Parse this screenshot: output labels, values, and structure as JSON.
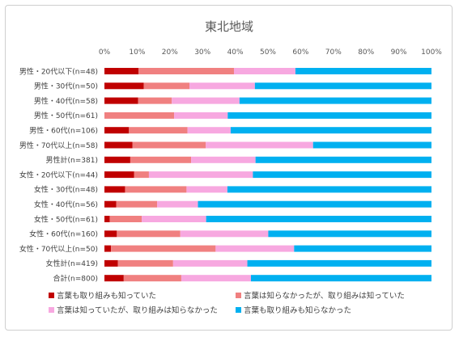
{
  "chart_data": {
    "type": "bar",
    "orientation": "horizontal",
    "stacked": true,
    "percent_stacked": true,
    "title": "東北地域",
    "xlim": [
      0,
      100
    ],
    "x_ticks": [
      "0%",
      "10%",
      "20%",
      "30%",
      "40%",
      "50%",
      "60%",
      "70%",
      "80%",
      "90%",
      "100%"
    ],
    "grid": false,
    "legend_position": "bottom",
    "categories": [
      "男性・20代以下(n=48)",
      "男性・30代(n=50)",
      "男性・40代(n=58)",
      "男性・50代(n=61)",
      "男性・60代(n=106)",
      "男性・70代以上(n=58)",
      "男性計(n=381)",
      "女性・20代以下(n=44)",
      "女性・30代(n=48)",
      "女性・40代(n=56)",
      "女性・50代(n=61)",
      "女性・60代(n=160)",
      "女性・70代以上(n=50)",
      "女性計(n=419)",
      "合計(n=800)"
    ],
    "series": [
      {
        "name": "言葉も取り組みも知っていた",
        "color": "#c00000",
        "values": [
          10.4,
          12.0,
          10.3,
          0.0,
          7.5,
          8.6,
          7.9,
          9.1,
          6.3,
          3.6,
          1.6,
          3.8,
          2.0,
          4.1,
          5.9
        ]
      },
      {
        "name": "言葉は知らなかったが、取り組みは知っていた",
        "color": "#f08080",
        "values": [
          29.2,
          14.0,
          10.3,
          21.3,
          17.9,
          22.4,
          18.6,
          4.5,
          18.8,
          12.5,
          9.8,
          19.4,
          32.0,
          16.9,
          17.6
        ]
      },
      {
        "name": "言葉は知っていたが、取り組みは知らなかった",
        "color": "#f7a8e0",
        "values": [
          18.8,
          20.0,
          20.7,
          16.4,
          13.2,
          32.8,
          19.7,
          31.8,
          12.5,
          12.5,
          19.7,
          26.9,
          24.0,
          22.7,
          21.3
        ]
      },
      {
        "name": "言葉も取り組みも知らなかった",
        "color": "#00b0f0",
        "values": [
          41.6,
          54.0,
          58.7,
          62.3,
          61.4,
          36.2,
          53.8,
          54.6,
          62.4,
          71.4,
          68.9,
          49.9,
          42.0,
          56.3,
          55.2
        ]
      }
    ]
  }
}
